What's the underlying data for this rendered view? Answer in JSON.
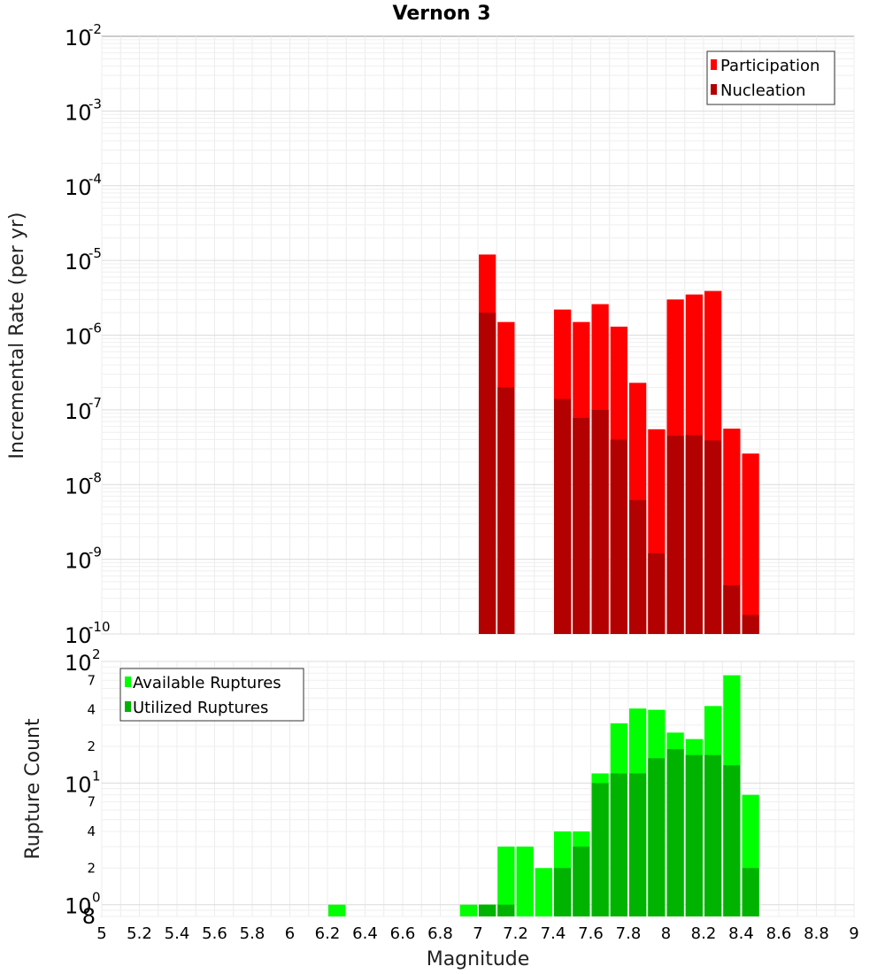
{
  "chart_data": [
    {
      "type": "bar",
      "title": "Vernon 3",
      "xlabel": "",
      "ylabel": "Incremental Rate (per yr)",
      "yscale": "log",
      "ylim": [
        1e-10,
        0.01
      ],
      "xlim": [
        5,
        9
      ],
      "y_tick_labels": [
        {
          "base": "10",
          "exp": "-2"
        },
        {
          "base": "10",
          "exp": "-3"
        },
        {
          "base": "10",
          "exp": "-4"
        },
        {
          "base": "10",
          "exp": "-5"
        },
        {
          "base": "10",
          "exp": "-6"
        },
        {
          "base": "10",
          "exp": "-7"
        },
        {
          "base": "10",
          "exp": "-8"
        },
        {
          "base": "10",
          "exp": "-9"
        },
        {
          "base": "10",
          "exp": "-10"
        }
      ],
      "legend": {
        "position": "top-right",
        "entries": [
          "Participation",
          "Nucleation"
        ]
      },
      "grid": true,
      "series": [
        {
          "name": "Participation",
          "color": "#ff0000",
          "x": [
            7.05,
            7.15,
            7.45,
            7.55,
            7.65,
            7.75,
            7.85,
            7.95,
            8.05,
            8.15,
            8.25,
            8.35,
            8.45
          ],
          "values": [
            1.2e-05,
            1.5e-06,
            2.2e-06,
            1.5e-06,
            2.6e-06,
            1.3e-06,
            2.3e-07,
            5.5e-08,
            3e-06,
            3.5e-06,
            3.9e-06,
            5.6e-08,
            2.6e-08
          ]
        },
        {
          "name": "Nucleation",
          "color": "#b30000",
          "x": [
            7.05,
            7.15,
            7.45,
            7.55,
            7.65,
            7.75,
            7.85,
            7.95,
            8.05,
            8.15,
            8.25,
            8.35,
            8.45
          ],
          "values": [
            2e-06,
            2e-07,
            1.4e-07,
            7.8e-08,
            1e-07,
            4e-08,
            6.2e-09,
            1.2e-09,
            4.5e-08,
            4.6e-08,
            3.9e-08,
            4.5e-10,
            1.8e-10
          ]
        }
      ]
    },
    {
      "type": "bar",
      "title": "",
      "xlabel": "Magnitude",
      "ylabel": "Rupture Count",
      "yscale": "log",
      "ylim": [
        0.8,
        100
      ],
      "xlim": [
        5,
        9
      ],
      "x_ticks": [
        "5",
        "5.2",
        "5.4",
        "5.6",
        "5.8",
        "6",
        "6.2",
        "6.4",
        "6.6",
        "6.8",
        "7",
        "7.2",
        "7.4",
        "7.6",
        "7.8",
        "8",
        "8.2",
        "8.4",
        "8.6",
        "8.8",
        "9"
      ],
      "y_tick_labels": [
        {
          "value": 100,
          "base": "10",
          "exp": "2"
        },
        {
          "value": 70,
          "label": "7"
        },
        {
          "value": 40,
          "label": "4"
        },
        {
          "value": 20,
          "label": "2"
        },
        {
          "value": 10,
          "base": "10",
          "exp": "1"
        },
        {
          "value": 7,
          "label": "7"
        },
        {
          "value": 4,
          "label": "4"
        },
        {
          "value": 2,
          "label": "2"
        },
        {
          "value": 1,
          "base": "10",
          "exp": "0"
        },
        {
          "value": 0.8,
          "label": "8"
        }
      ],
      "legend": {
        "position": "top-left",
        "entries": [
          "Available Ruptures",
          "Utilized Ruptures"
        ]
      },
      "grid": true,
      "series": [
        {
          "name": "Available Ruptures",
          "color": "#00ff00",
          "x": [
            6.25,
            6.95,
            7.05,
            7.15,
            7.25,
            7.35,
            7.45,
            7.55,
            7.65,
            7.75,
            7.85,
            7.95,
            8.05,
            8.15,
            8.25,
            8.35,
            8.45
          ],
          "values": [
            1,
            1,
            1,
            3,
            3,
            2,
            4,
            4,
            12,
            31,
            41,
            40,
            26,
            23,
            43,
            77,
            8
          ]
        },
        {
          "name": "Utilized Ruptures",
          "color": "#00b300",
          "x": [
            7.05,
            7.15,
            7.45,
            7.55,
            7.65,
            7.75,
            7.85,
            7.95,
            8.05,
            8.15,
            8.25,
            8.35,
            8.45
          ],
          "values": [
            1,
            1,
            2,
            3,
            10,
            12,
            12,
            16,
            19,
            17,
            17,
            14,
            2
          ]
        }
      ]
    }
  ]
}
